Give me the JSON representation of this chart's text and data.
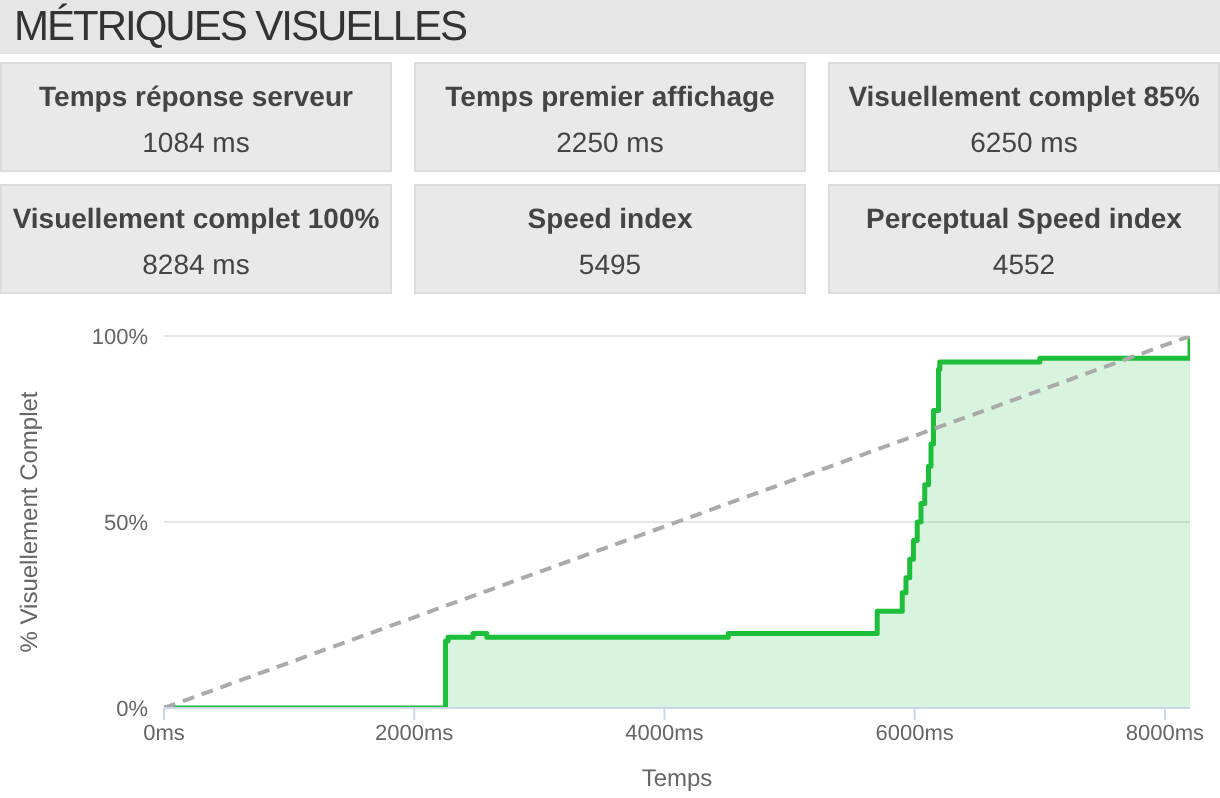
{
  "chart_data": [
    {
      "type": "other",
      "title": "MÉTRIQUES VISUELLES",
      "annotations": [
        "Temps réponse serveur",
        "1084 ms",
        "Temps premier affichage",
        "2250 ms",
        "Visuellement complet 85%",
        "6250 ms",
        "Visuellement complet 100%",
        "8284 ms",
        "Speed index",
        "5495",
        "Perceptual Speed index",
        "4552"
      ]
    },
    {
      "type": "step",
      "xlabel": "Temps",
      "ylabel": "% Visuellement Complet",
      "xlim": [
        0,
        8200
      ],
      "ylim": [
        0,
        100
      ],
      "xticks": [
        {
          "value": 0,
          "label": "0ms"
        },
        {
          "value": 2000,
          "label": "2000ms"
        },
        {
          "value": 4000,
          "label": "4000ms"
        },
        {
          "value": 6000,
          "label": "6000ms"
        },
        {
          "value": 8000,
          "label": "8000ms"
        }
      ],
      "yticks": [
        {
          "value": 0,
          "label": "0%"
        },
        {
          "value": 50,
          "label": "50%"
        },
        {
          "value": 100,
          "label": "100%"
        }
      ],
      "grid": "y",
      "marker": "none",
      "series": [
        {
          "type": "step",
          "color": "#1dbf3a",
          "x": [
            0,
            2250,
            2270,
            2470,
            2580,
            4510,
            5700,
            5900,
            5930,
            5960,
            5990,
            6020,
            6050,
            6080,
            6110,
            6130,
            6150,
            6190,
            6200,
            7000,
            8200
          ],
          "values": [
            0,
            18,
            19,
            20,
            19,
            20,
            26,
            31,
            35,
            40,
            45,
            50,
            55,
            60,
            65,
            71,
            80,
            91,
            93,
            94,
            100
          ]
        },
        {
          "type": "line",
          "color": "#aaaaaa",
          "line_style": "dashed",
          "x": [
            0,
            8200
          ],
          "values": [
            0,
            100
          ]
        }
      ]
    }
  ]
}
